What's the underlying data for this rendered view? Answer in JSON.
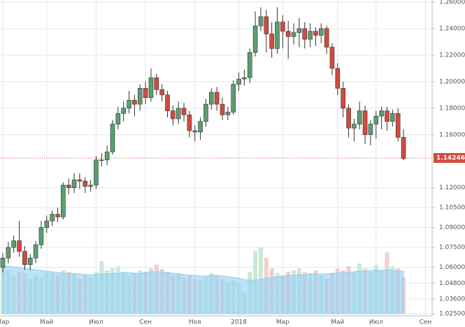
{
  "chart_data": {
    "type": "candlestick",
    "categories": [
      "Мар",
      null,
      null,
      null,
      null,
      null,
      null,
      null,
      "Май",
      null,
      null,
      null,
      null,
      null,
      null,
      null,
      null,
      "Июл",
      null,
      null,
      null,
      null,
      null,
      null,
      null,
      null,
      "Сен",
      null,
      null,
      null,
      null,
      null,
      null,
      null,
      null,
      "Ноя",
      null,
      null,
      null,
      null,
      null,
      null,
      null,
      "2018",
      null,
      null,
      null,
      null,
      null,
      null,
      null,
      "Мар",
      null,
      null,
      null,
      null,
      null,
      null,
      null,
      null,
      null,
      "Май",
      null,
      null,
      null,
      null,
      null,
      null,
      "Июл",
      null,
      null,
      null,
      null,
      null,
      null,
      null,
      null,
      "Сен"
    ],
    "open": [
      1.06,
      1.067,
      1.075,
      1.08,
      1.072,
      1.062,
      1.067,
      1.077,
      1.09,
      1.095,
      1.1,
      1.098,
      1.122,
      1.12,
      1.126,
      1.125,
      1.121,
      1.122,
      1.141,
      1.141,
      1.147,
      1.168,
      1.176,
      1.18,
      1.186,
      1.183,
      1.195,
      1.188,
      1.203,
      1.194,
      1.19,
      1.178,
      1.172,
      1.18,
      1.175,
      1.163,
      1.162,
      1.17,
      1.183,
      1.192,
      1.183,
      1.175,
      1.177,
      1.198,
      1.202,
      1.203,
      1.222,
      1.242,
      1.249,
      1.236,
      1.225,
      1.245,
      1.238,
      1.234,
      1.237,
      1.24,
      1.232,
      1.238,
      1.235,
      1.24,
      1.226,
      1.21,
      1.195,
      1.18,
      1.165,
      1.168,
      1.178,
      1.16,
      1.168,
      1.174,
      1.178,
      1.17,
      1.176,
      1.158,
      null,
      null,
      null,
      null
    ],
    "high": [
      1.071,
      1.079,
      1.084,
      1.095,
      1.076,
      1.07,
      1.08,
      1.095,
      1.099,
      1.103,
      1.105,
      1.124,
      1.127,
      1.131,
      1.131,
      1.128,
      1.126,
      1.144,
      1.146,
      1.152,
      1.171,
      1.181,
      1.185,
      1.193,
      1.19,
      1.198,
      1.2,
      1.21,
      1.206,
      1.198,
      1.193,
      1.182,
      1.185,
      1.184,
      1.178,
      1.167,
      1.173,
      1.187,
      1.195,
      1.196,
      1.188,
      1.181,
      1.201,
      1.207,
      1.209,
      1.225,
      1.253,
      1.256,
      1.254,
      1.245,
      1.256,
      1.25,
      1.246,
      1.244,
      1.248,
      1.245,
      1.244,
      1.241,
      1.244,
      1.242,
      1.229,
      1.214,
      1.2,
      1.183,
      1.172,
      1.185,
      1.182,
      1.171,
      1.178,
      1.181,
      1.181,
      1.179,
      1.18,
      1.164,
      null,
      null,
      null,
      null
    ],
    "low": [
      1.056,
      1.063,
      1.071,
      1.068,
      1.058,
      1.058,
      1.063,
      1.074,
      1.086,
      1.091,
      1.094,
      1.096,
      1.115,
      1.116,
      1.119,
      1.116,
      1.117,
      1.119,
      1.136,
      1.137,
      1.145,
      1.164,
      1.17,
      1.176,
      1.174,
      1.178,
      1.183,
      1.185,
      1.19,
      1.185,
      1.173,
      1.167,
      1.168,
      1.17,
      1.158,
      1.155,
      1.156,
      1.166,
      1.179,
      1.178,
      1.171,
      1.171,
      1.175,
      1.193,
      1.197,
      1.199,
      1.219,
      1.238,
      1.222,
      1.218,
      1.221,
      1.225,
      1.217,
      1.228,
      1.226,
      1.225,
      1.226,
      1.227,
      1.229,
      1.221,
      1.205,
      1.19,
      1.173,
      1.158,
      1.155,
      1.164,
      1.153,
      1.152,
      1.157,
      1.164,
      1.163,
      1.166,
      1.155,
      1.141,
      null,
      null,
      null,
      null
    ],
    "close": [
      1.067,
      1.075,
      1.08,
      1.072,
      1.062,
      1.067,
      1.077,
      1.09,
      1.095,
      1.1,
      1.098,
      1.122,
      1.12,
      1.126,
      1.125,
      1.121,
      1.122,
      1.141,
      1.141,
      1.147,
      1.168,
      1.176,
      1.18,
      1.186,
      1.183,
      1.195,
      1.188,
      1.203,
      1.194,
      1.19,
      1.178,
      1.172,
      1.18,
      1.175,
      1.163,
      1.162,
      1.17,
      1.183,
      1.192,
      1.183,
      1.175,
      1.177,
      1.198,
      1.202,
      1.203,
      1.222,
      1.242,
      1.249,
      1.236,
      1.225,
      1.245,
      1.238,
      1.234,
      1.237,
      1.24,
      1.232,
      1.238,
      1.235,
      1.24,
      1.226,
      1.21,
      1.195,
      1.18,
      1.165,
      1.168,
      1.178,
      1.16,
      1.168,
      1.174,
      1.178,
      1.17,
      1.176,
      1.158,
      1.142,
      null,
      null,
      null,
      null
    ],
    "volume": [
      70,
      62,
      55,
      60,
      58,
      50,
      55,
      52,
      60,
      58,
      55,
      62,
      60,
      58,
      50,
      55,
      52,
      60,
      75,
      62,
      65,
      68,
      60,
      55,
      58,
      62,
      60,
      65,
      70,
      64,
      60,
      55,
      58,
      52,
      56,
      50,
      48,
      52,
      58,
      55,
      50,
      45,
      48,
      45,
      30,
      60,
      90,
      95,
      80,
      65,
      58,
      55,
      60,
      62,
      65,
      60,
      58,
      62,
      55,
      50,
      58,
      65,
      62,
      68,
      60,
      72,
      65,
      60,
      70,
      62,
      88,
      68,
      65,
      52,
      null,
      null,
      null,
      null
    ],
    "volume_ma": [
      68,
      68,
      67,
      66,
      65,
      64,
      63,
      62,
      61,
      60,
      59,
      58,
      58,
      57,
      57,
      56,
      56,
      56,
      57,
      57,
      58,
      58,
      59,
      59,
      58,
      58,
      59,
      60,
      60,
      60,
      59,
      58,
      57,
      56,
      55,
      55,
      54,
      54,
      55,
      55,
      54,
      53,
      52,
      51,
      49,
      48,
      48,
      49,
      51,
      52,
      53,
      54,
      55,
      55,
      56,
      56,
      57,
      57,
      57,
      57,
      58,
      58,
      59,
      59,
      60,
      61,
      61,
      62,
      62,
      62,
      63,
      62,
      61,
      61,
      null,
      null,
      null,
      null
    ],
    "up_color": "#5a9e6f",
    "down_color": "#d24a3e",
    "volume_up_color": "#cde8d3",
    "volume_down_color": "#f3cfcf",
    "volume_ma_color": "#8fd0f5",
    "ylim": [
      1.025,
      1.26
    ],
    "yticks": [
      {
        "value": 1.26,
        "label": "1.26000"
      },
      {
        "value": 1.24,
        "label": "1.24000"
      },
      {
        "value": 1.22,
        "label": "1.22000"
      },
      {
        "value": 1.2,
        "label": "1.20000"
      },
      {
        "value": 1.18,
        "label": "1.18000"
      },
      {
        "value": 1.16,
        "label": "1.16000"
      },
      {
        "value": 1.12,
        "label": "1.12000"
      },
      {
        "value": 1.105,
        "label": "1.10500"
      },
      {
        "value": 1.09,
        "label": "1.09000"
      },
      {
        "value": 1.075,
        "label": "1.07500"
      },
      {
        "value": 1.06,
        "label": "1.06000"
      },
      {
        "value": 1.048,
        "label": "1.04800"
      },
      {
        "value": 1.036,
        "label": "1.03600"
      },
      {
        "value": 1.025,
        "label": "1.02500"
      }
    ],
    "last_price": {
      "value": 1.14246,
      "label": "1.14246"
    },
    "grid": true
  }
}
